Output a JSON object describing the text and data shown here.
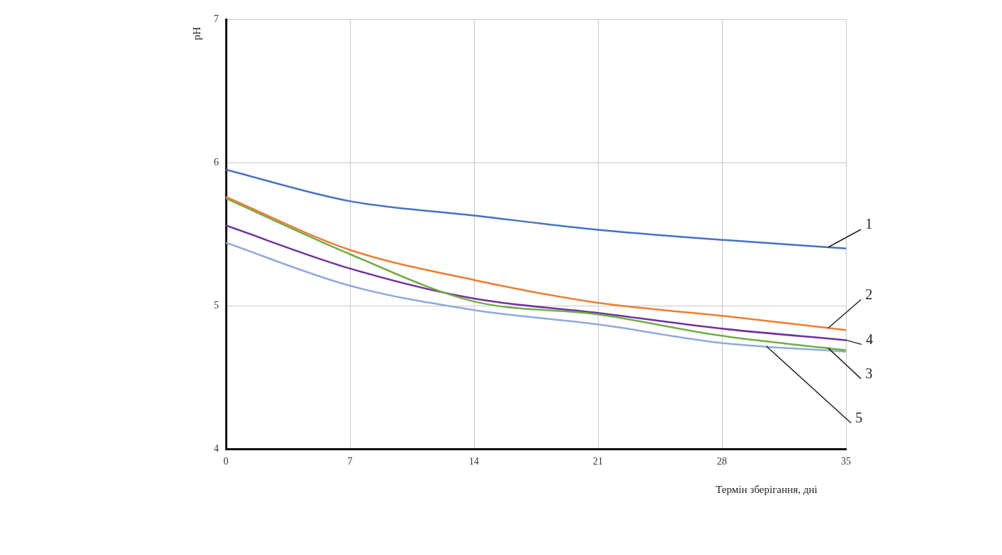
{
  "chart_data": {
    "type": "line",
    "xlabel": "Термін зберігання, дні",
    "ylabel": "pH",
    "x": [
      0,
      7,
      14,
      21,
      28,
      35
    ],
    "xlim": [
      0,
      35
    ],
    "xticks": [
      0,
      7,
      14,
      21,
      28,
      35
    ],
    "ylim": [
      4,
      7
    ],
    "yticks": [
      4,
      5,
      6,
      7
    ],
    "grid": true,
    "marker": "none",
    "line_style": "solid",
    "series": [
      {
        "name": "1",
        "color": "#4472c4",
        "values": [
          5.95,
          5.73,
          5.63,
          5.53,
          5.46,
          5.4
        ]
      },
      {
        "name": "2",
        "color": "#ed7d31",
        "values": [
          5.76,
          5.39,
          5.18,
          5.02,
          4.93,
          4.83
        ]
      },
      {
        "name": "3",
        "color": "#70ad47",
        "values": [
          5.75,
          5.36,
          5.03,
          4.94,
          4.79,
          4.69
        ]
      },
      {
        "name": "4",
        "color": "#7030a0",
        "values": [
          5.56,
          5.26,
          5.05,
          4.95,
          4.84,
          4.76
        ]
      },
      {
        "name": "5",
        "color": "#8faadc",
        "values": [
          5.44,
          5.14,
          4.97,
          4.87,
          4.74,
          4.68
        ]
      }
    ]
  }
}
